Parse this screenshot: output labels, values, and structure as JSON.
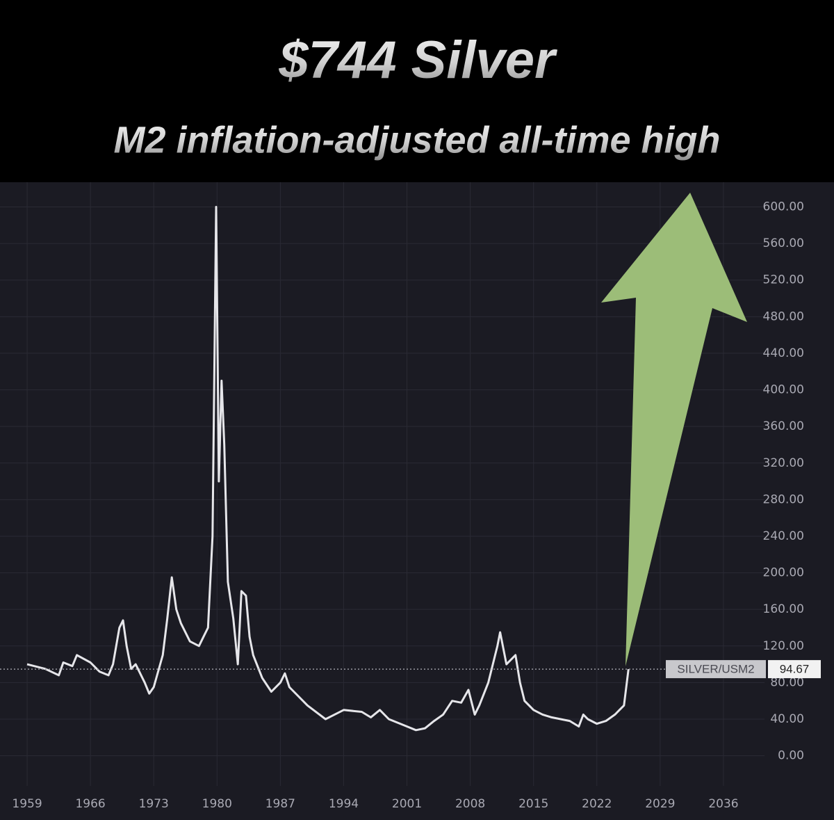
{
  "chart_data": {
    "type": "line",
    "title": "$744 Silver",
    "subtitle": "M2 inflation-adjusted all-time high",
    "series": [
      {
        "name": "SILVER/USM2",
        "color": "#e6e6ea",
        "x": [
          1959,
          1961,
          1962.5,
          1963,
          1964,
          1964.5,
          1966,
          1967,
          1968,
          1968.5,
          1969.2,
          1969.6,
          1970,
          1970.5,
          1971,
          1972,
          1972.5,
          1973,
          1974,
          1974.5,
          1975,
          1975.5,
          1976,
          1977,
          1978,
          1978.5,
          1979,
          1979.5,
          1979.9,
          1980.2,
          1980.5,
          1980.8,
          1981.2,
          1981.8,
          1982.3,
          1982.7,
          1983.2,
          1983.6,
          1984,
          1985,
          1986,
          1987,
          1987.5,
          1988,
          1990,
          1992,
          1993,
          1994,
          1996,
          1997,
          1998,
          1999,
          2001,
          2002,
          2003,
          2004,
          2005,
          2006,
          2007,
          2007.8,
          2008.5,
          2009,
          2010,
          2011,
          2011.3,
          2012,
          2013,
          2013.5,
          2014,
          2015,
          2016,
          2017,
          2018,
          2019,
          2020,
          2020.5,
          2021,
          2022,
          2023,
          2024,
          2025,
          2025.5
        ],
        "values": [
          100,
          95,
          88,
          102,
          98,
          110,
          102,
          92,
          88,
          100,
          140,
          148,
          120,
          95,
          100,
          80,
          68,
          75,
          110,
          150,
          195,
          160,
          145,
          125,
          120,
          130,
          140,
          240,
          600,
          300,
          410,
          340,
          190,
          150,
          100,
          180,
          175,
          130,
          110,
          85,
          70,
          80,
          90,
          75,
          55,
          40,
          45,
          50,
          48,
          42,
          50,
          40,
          32,
          28,
          30,
          38,
          45,
          60,
          58,
          72,
          45,
          55,
          80,
          120,
          135,
          100,
          110,
          80,
          60,
          50,
          45,
          42,
          40,
          38,
          32,
          45,
          40,
          35,
          38,
          45,
          55,
          94.67
        ]
      }
    ],
    "current_value": 94.67,
    "xlim": [
      1956,
      2040
    ],
    "ylim": [
      -33,
      627
    ],
    "xticks": [
      1959,
      1966,
      1973,
      1980,
      1987,
      1994,
      2001,
      2008,
      2015,
      2022,
      2029,
      2036
    ],
    "yticks": [
      {
        "value": 0,
        "label": "0.00"
      },
      {
        "value": 40,
        "label": "40.00"
      },
      {
        "value": 80,
        "label": "80.00"
      },
      {
        "value": 120,
        "label": "120.00"
      },
      {
        "value": 160,
        "label": "160.00"
      },
      {
        "value": 200,
        "label": "200.00"
      },
      {
        "value": 240,
        "label": "240.00"
      },
      {
        "value": 280,
        "label": "280.00"
      },
      {
        "value": 320,
        "label": "320.00"
      },
      {
        "value": 360,
        "label": "360.00"
      },
      {
        "value": 400,
        "label": "400.00"
      },
      {
        "value": 440,
        "label": "440.00"
      },
      {
        "value": 480,
        "label": "480.00"
      },
      {
        "value": 520,
        "label": "520.00"
      },
      {
        "value": 560,
        "label": "560.00"
      },
      {
        "value": 600,
        "label": "600.00"
      }
    ],
    "grid": true
  }
}
